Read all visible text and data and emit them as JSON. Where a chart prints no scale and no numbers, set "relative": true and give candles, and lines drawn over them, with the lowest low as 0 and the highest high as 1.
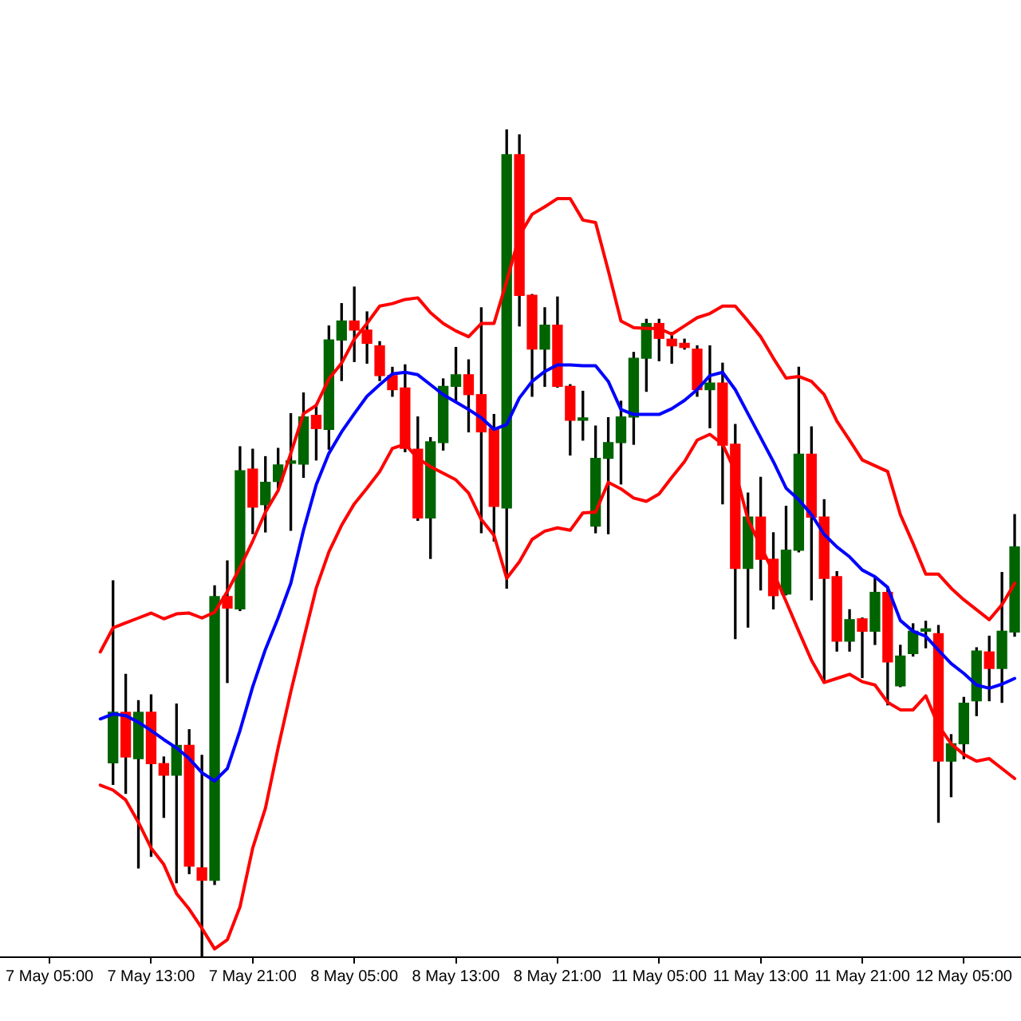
{
  "chart_data": {
    "type": "candlestick",
    "relative": true,
    "categories": [
      "7 May 05:00",
      null,
      null,
      null,
      null,
      null,
      null,
      null,
      "7 May 13:00",
      null,
      null,
      null,
      null,
      null,
      null,
      null,
      "7 May 21:00",
      null,
      null,
      null,
      null,
      null,
      null,
      null,
      "8 May 05:00",
      null,
      null,
      null,
      null,
      null,
      null,
      null,
      "8 May 13:00",
      null,
      null,
      null,
      null,
      null,
      null,
      null,
      "8 May 21:00",
      null,
      null,
      null,
      null,
      null,
      null,
      null,
      "11 May 05:00",
      null,
      null,
      null,
      null,
      null,
      null,
      null,
      "11 May 13:00",
      null,
      null,
      null,
      null,
      null,
      null,
      null,
      "11 May 21:00",
      null,
      null,
      null,
      null,
      null,
      null,
      null,
      "12 May 05:00",
      null,
      null,
      null,
      null
    ],
    "ohlc": [
      null,
      null,
      null,
      null,
      null,
      [
        0.235,
        0.455,
        0.209,
        0.296
      ],
      [
        0.296,
        0.342,
        0.198,
        0.242
      ],
      [
        0.24,
        0.31,
        0.108,
        0.296
      ],
      [
        0.296,
        0.317,
        0.122,
        0.234
      ],
      [
        0.234,
        0.242,
        0.169,
        0.22
      ],
      [
        0.22,
        0.306,
        0.09,
        0.256
      ],
      [
        0.256,
        0.275,
        0.101,
        0.11
      ],
      [
        0.108,
        0.244,
        0,
        0.093
      ],
      [
        0.093,
        0.449,
        0.088,
        0.436
      ],
      [
        0.436,
        0.479,
        0.332,
        0.422
      ],
      [
        0.421,
        0.617,
        0.419,
        0.588
      ],
      [
        0.59,
        0.614,
        0.512,
        0.544
      ],
      [
        0.547,
        0.605,
        0.514,
        0.574
      ],
      [
        0.575,
        0.615,
        0.567,
        0.595
      ],
      [
        0.597,
        0.657,
        0.516,
        0.598
      ],
      [
        0.596,
        0.682,
        0.58,
        0.653
      ],
      [
        0.655,
        0.667,
        0.601,
        0.639
      ],
      [
        0.638,
        0.763,
        0.614,
        0.746
      ],
      [
        0.746,
        0.79,
        0.697,
        0.769
      ],
      [
        0.769,
        0.81,
        0.72,
        0.758
      ],
      [
        0.758,
        0.78,
        0.718,
        0.742
      ],
      [
        0.739,
        0.744,
        0.697,
        0.703
      ],
      [
        0.703,
        0.713,
        0.678,
        0.686
      ],
      [
        0.688,
        0.716,
        0.611,
        0.615
      ],
      [
        0.614,
        0.653,
        0.528,
        0.531
      ],
      [
        0.531,
        0.628,
        0.482,
        0.623
      ],
      [
        0.622,
        0.699,
        0.613,
        0.69
      ],
      [
        0.69,
        0.737,
        0.673,
        0.704
      ],
      [
        0.704,
        0.722,
        0.635,
        0.68
      ],
      [
        0.68,
        0.785,
        0.513,
        0.635
      ],
      [
        0.639,
        0.656,
        0.503,
        0.545
      ],
      [
        0.543,
        1,
        0.446,
        0.97
      ],
      [
        0.97,
        0.994,
        0.763,
        0.8
      ],
      [
        0.8,
        0.801,
        0.678,
        0.735
      ],
      [
        0.735,
        0.785,
        0.69,
        0.764
      ],
      [
        0.764,
        0.798,
        0.689,
        0.69
      ],
      [
        0.69,
        0.692,
        0.607,
        0.649
      ],
      [
        0.649,
        0.684,
        0.625,
        0.649
      ],
      [
        0.521,
        0.642,
        0.513,
        0.603
      ],
      [
        0.603,
        0.652,
        0.512,
        0.622
      ],
      [
        0.622,
        0.672,
        0.572,
        0.653
      ],
      [
        0.653,
        0.731,
        0.62,
        0.724
      ],
      [
        0.724,
        0.771,
        0.684,
        0.766
      ],
      [
        0.766,
        0.771,
        0.721,
        0.748
      ],
      [
        0.747,
        0.755,
        0.718,
        0.739
      ],
      [
        0.742,
        0.747,
        0.735,
        0.737
      ],
      [
        0.735,
        0.739,
        0.678,
        0.686
      ],
      [
        0.686,
        0.739,
        0.64,
        0.694
      ],
      [
        0.694,
        0.718,
        0.548,
        0.619
      ],
      [
        0.62,
        0.644,
        0.385,
        0.47
      ],
      [
        0.47,
        0.561,
        0.399,
        0.532
      ],
      [
        0.532,
        0.58,
        0.444,
        0.481
      ],
      [
        0.481,
        0.513,
        0.421,
        0.437
      ],
      [
        0.439,
        0.545,
        0.438,
        0.492
      ],
      [
        0.492,
        0.713,
        0.49,
        0.608
      ],
      [
        0.608,
        0.641,
        0.432,
        0.532
      ],
      [
        0.532,
        0.553,
        0.332,
        0.458
      ],
      [
        0.46,
        0.466,
        0.37,
        0.382
      ],
      [
        0.382,
        0.42,
        0.37,
        0.408
      ],
      [
        0.409,
        0.41,
        0.338,
        0.394
      ],
      [
        0.394,
        0.458,
        0.378,
        0.441
      ],
      [
        0.441,
        0.446,
        0.305,
        0.357
      ],
      [
        0.328,
        0.377,
        0.327,
        0.364
      ],
      [
        0.367,
        0.403,
        0.364,
        0.394
      ],
      [
        0.394,
        0.406,
        0.374,
        0.396
      ],
      [
        0.391,
        0.401,
        0.163,
        0.237
      ],
      [
        0.237,
        0.269,
        0.194,
        0.258
      ],
      [
        0.258,
        0.314,
        0.24,
        0.307
      ],
      [
        0.31,
        0.374,
        0.292,
        0.37
      ],
      [
        0.369,
        0.388,
        0.31,
        0.349
      ],
      [
        0.349,
        0.465,
        0.308,
        0.394
      ],
      [
        0.393,
        0.535,
        0.388,
        0.496
      ]
    ],
    "colors": [
      null,
      null,
      null,
      null,
      null,
      "#006400",
      "#ff0000",
      "#006400",
      "#ff0000",
      "#ff0000",
      "#006400",
      "#ff0000",
      "#ff0000",
      "#006400",
      "#ff0000",
      "#006400",
      "#ff0000",
      "#006400",
      "#006400",
      "#006400",
      "#006400",
      "#ff0000",
      "#006400",
      "#006400",
      "#ff0000",
      "#ff0000",
      "#ff0000",
      "#ff0000",
      "#ff0000",
      "#ff0000",
      "#006400",
      "#006400",
      "#006400",
      "#ff0000",
      "#ff0000",
      "#ff0000",
      "#006400",
      "#ff0000",
      "#ff0000",
      "#006400",
      "#ff0000",
      "#ff0000",
      "#006400",
      "#006400",
      "#006400",
      "#006400",
      "#006400",
      "#006400",
      "#ff0000",
      "#ff0000",
      "#ff0000",
      "#ff0000",
      "#006400",
      "#ff0000",
      "#ff0000",
      "#006400",
      "#ff0000",
      "#ff0000",
      "#006400",
      "#006400",
      "#ff0000",
      "#ff0000",
      "#ff0000",
      "#006400",
      "#ff0000",
      "#006400",
      "#ff0000",
      "#006400",
      "#006400",
      "#006400",
      "#ff0000",
      "#006400",
      "#006400",
      "#006400",
      "#ff0000",
      "#006400",
      "#006400"
    ],
    "series": [
      {
        "type": "line",
        "color": "#ff0000",
        "values": [
          null,
          null,
          null,
          null,
          0.369,
          0.398,
          0.404,
          0.41,
          0.416,
          0.409,
          0.415,
          0.416,
          0.41,
          0.417,
          0.442,
          0.471,
          0.503,
          0.538,
          0.564,
          0.609,
          0.657,
          0.667,
          0.699,
          0.718,
          0.747,
          0.766,
          0.787,
          0.79,
          0.795,
          0.797,
          0.779,
          0.766,
          0.757,
          0.75,
          0.766,
          0.766,
          0.817,
          0.872,
          0.898,
          0.907,
          0.917,
          0.917,
          0.891,
          0.888,
          0.83,
          0.769,
          0.761,
          0.76,
          0.76,
          0.753,
          0.763,
          0.773,
          0.778,
          0.787,
          0.787,
          0.769,
          0.75,
          0.724,
          0.7,
          0.702,
          0.696,
          0.68,
          0.648,
          0.625,
          0.601,
          0.594,
          0.587,
          0.535,
          0.5,
          0.463,
          0.463,
          0.446,
          0.432,
          0.42,
          0.408,
          0.426,
          0.452
        ]
      },
      {
        "type": "line",
        "color": "#0000ff",
        "values": [
          null,
          null,
          null,
          null,
          0.288,
          0.294,
          0.292,
          0.284,
          0.274,
          0.263,
          0.253,
          0.24,
          0.223,
          0.213,
          0.228,
          0.274,
          0.327,
          0.372,
          0.41,
          0.452,
          0.516,
          0.571,
          0.609,
          0.635,
          0.657,
          0.678,
          0.692,
          0.705,
          0.707,
          0.704,
          0.692,
          0.68,
          0.671,
          0.662,
          0.652,
          0.638,
          0.644,
          0.676,
          0.696,
          0.708,
          0.716,
          0.716,
          0.715,
          0.715,
          0.696,
          0.662,
          0.656,
          0.656,
          0.656,
          0.663,
          0.673,
          0.686,
          0.703,
          0.707,
          0.686,
          0.657,
          0.628,
          0.599,
          0.567,
          0.553,
          0.535,
          0.511,
          0.496,
          0.484,
          0.468,
          0.46,
          0.447,
          0.407,
          0.394,
          0.388,
          0.371,
          0.355,
          0.343,
          0.329,
          0.325,
          0.33,
          0.337
        ]
      },
      {
        "type": "line",
        "color": "#ff0000",
        "values": [
          null,
          null,
          null,
          null,
          0.208,
          0.202,
          0.19,
          0.163,
          0.132,
          0.112,
          0.077,
          0.058,
          0.035,
          0.01,
          0.021,
          0.061,
          0.132,
          0.18,
          0.253,
          0.321,
          0.384,
          0.446,
          0.49,
          0.522,
          0.548,
          0.567,
          0.587,
          0.615,
          0.62,
          0.603,
          0.593,
          0.585,
          0.577,
          0.561,
          0.529,
          0.51,
          0.458,
          0.478,
          0.505,
          0.515,
          0.519,
          0.516,
          0.537,
          0.538,
          0.574,
          0.566,
          0.555,
          0.551,
          0.56,
          0.58,
          0.599,
          0.625,
          0.632,
          0.62,
          0.587,
          0.529,
          0.497,
          0.465,
          0.43,
          0.394,
          0.359,
          0.332,
          0.337,
          0.342,
          0.333,
          0.329,
          0.308,
          0.299,
          0.299,
          0.316,
          0.28,
          0.258,
          0.245,
          0.237,
          0.24,
          0.228,
          0.216
        ]
      }
    ]
  }
}
